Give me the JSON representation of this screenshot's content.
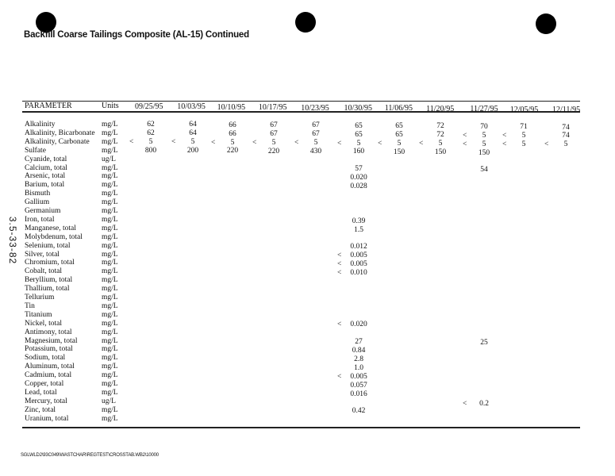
{
  "title": "Backfill Coarse Tailings Composite (AL-15) Continued",
  "side_label": "3.5-33-82",
  "footer": "SGLWLD2\\93C049\\WASTCHAR\\REGTEST\\CROSSTAB.WB2\\10000",
  "table": {
    "param_header": "PARAMETER",
    "units_header": "Units",
    "dates": [
      "09/25/95",
      "10/03/95",
      "10/10/95",
      "10/17/95",
      "10/23/95",
      "10/30/95",
      "11/06/95",
      "11/20/95",
      "11/27/95",
      "12/05/95",
      "12/11/95"
    ],
    "rows": [
      {
        "name": "Alkalinity",
        "units": "mg/L",
        "cells": [
          [
            "",
            "62"
          ],
          [
            "",
            "64"
          ],
          [
            "",
            "66"
          ],
          [
            "",
            "67"
          ],
          [
            "",
            "67"
          ],
          [
            "",
            "65"
          ],
          [
            "",
            "65"
          ],
          [
            "",
            "72"
          ],
          [
            "",
            "70"
          ],
          [
            "",
            "71"
          ],
          [
            "",
            "74"
          ]
        ]
      },
      {
        "name": "Alkalinity, Bicarbonate",
        "units": "mg/L",
        "cells": [
          [
            "",
            "62"
          ],
          [
            "",
            "64"
          ],
          [
            "",
            "66"
          ],
          [
            "",
            "67"
          ],
          [
            "",
            "67"
          ],
          [
            "",
            "65"
          ],
          [
            "",
            "65"
          ],
          [
            "",
            "72"
          ],
          [
            "<",
            "5"
          ],
          [
            "<",
            "5"
          ],
          [
            "",
            "74"
          ]
        ]
      },
      {
        "name": "Alkalinity, Carbonate",
        "units": "mg/L",
        "cells": [
          [
            "<",
            "5"
          ],
          [
            "<",
            "5"
          ],
          [
            "<",
            "5"
          ],
          [
            "<",
            "5"
          ],
          [
            "<",
            "5"
          ],
          [
            "<",
            "5"
          ],
          [
            "<",
            "5"
          ],
          [
            "<",
            "5"
          ],
          [
            "<",
            "5"
          ],
          [
            "<",
            "5"
          ],
          [
            "<",
            "5"
          ]
        ]
      },
      {
        "name": "Sulfate",
        "units": "mg/L",
        "cells": [
          [
            "",
            "800"
          ],
          [
            "",
            "200"
          ],
          [
            "",
            "220"
          ],
          [
            "",
            "220"
          ],
          [
            "",
            "430"
          ],
          [
            "",
            "160"
          ],
          [
            "",
            "150"
          ],
          [
            "",
            "150"
          ],
          [
            "",
            "150"
          ],
          [
            "",
            ""
          ],
          [
            "",
            ""
          ]
        ]
      },
      {
        "name": "Cyanide, total",
        "units": "ug/L",
        "cells": []
      },
      {
        "name": "Calcium, total",
        "units": "mg/L",
        "cells": [
          [
            "",
            ""
          ],
          [
            "",
            ""
          ],
          [
            "",
            ""
          ],
          [
            "",
            ""
          ],
          [
            "",
            ""
          ],
          [
            "",
            "57"
          ],
          [
            "",
            ""
          ],
          [
            "",
            ""
          ],
          [
            "",
            "54"
          ],
          [
            "",
            ""
          ],
          [
            "",
            ""
          ]
        ]
      },
      {
        "name": "Arsenic, total",
        "units": "mg/L",
        "cells": [
          [
            "",
            ""
          ],
          [
            "",
            ""
          ],
          [
            "",
            ""
          ],
          [
            "",
            ""
          ],
          [
            "",
            ""
          ],
          [
            "",
            "0.020"
          ]
        ]
      },
      {
        "name": "Barium, total",
        "units": "mg/L",
        "cells": [
          [
            "",
            ""
          ],
          [
            "",
            ""
          ],
          [
            "",
            ""
          ],
          [
            "",
            ""
          ],
          [
            "",
            ""
          ],
          [
            "",
            "0.028"
          ]
        ]
      },
      {
        "name": "Bismuth",
        "units": "mg/L",
        "cells": []
      },
      {
        "name": "Gallium",
        "units": "mg/L",
        "cells": []
      },
      {
        "name": "Germanium",
        "units": "mg/L",
        "cells": []
      },
      {
        "name": "Iron, total",
        "units": "mg/L",
        "cells": [
          [
            "",
            ""
          ],
          [
            "",
            ""
          ],
          [
            "",
            ""
          ],
          [
            "",
            ""
          ],
          [
            "",
            ""
          ],
          [
            "",
            "0.39"
          ]
        ]
      },
      {
        "name": "Manganese, total",
        "units": "mg/L",
        "cells": [
          [
            "",
            ""
          ],
          [
            "",
            ""
          ],
          [
            "",
            ""
          ],
          [
            "",
            ""
          ],
          [
            "",
            ""
          ],
          [
            "",
            "1.5"
          ]
        ]
      },
      {
        "name": "Molybdenum, total",
        "units": "mg/L",
        "cells": []
      },
      {
        "name": "Selenium, total",
        "units": "mg/L",
        "cells": [
          [
            "",
            ""
          ],
          [
            "",
            ""
          ],
          [
            "",
            ""
          ],
          [
            "",
            ""
          ],
          [
            "",
            ""
          ],
          [
            "",
            "0.012"
          ]
        ]
      },
      {
        "name": "Silver, total",
        "units": "mg/L",
        "cells": [
          [
            "",
            ""
          ],
          [
            "",
            ""
          ],
          [
            "",
            ""
          ],
          [
            "",
            ""
          ],
          [
            "",
            ""
          ],
          [
            "<",
            "0.005"
          ]
        ]
      },
      {
        "name": "Chromium, total",
        "units": "mg/L",
        "cells": [
          [
            "",
            ""
          ],
          [
            "",
            ""
          ],
          [
            "",
            ""
          ],
          [
            "",
            ""
          ],
          [
            "",
            ""
          ],
          [
            "<",
            "0.005"
          ]
        ]
      },
      {
        "name": "Cobalt, total",
        "units": "mg/L",
        "cells": [
          [
            "",
            ""
          ],
          [
            "",
            ""
          ],
          [
            "",
            ""
          ],
          [
            "",
            ""
          ],
          [
            "",
            ""
          ],
          [
            "<",
            "0.010"
          ]
        ]
      },
      {
        "name": "Beryllium, total",
        "units": "mg/L",
        "cells": []
      },
      {
        "name": "Thallium, total",
        "units": "mg/L",
        "cells": []
      },
      {
        "name": "Tellurium",
        "units": "mg/L",
        "cells": []
      },
      {
        "name": "Tin",
        "units": "mg/L",
        "cells": []
      },
      {
        "name": "Titanium",
        "units": "mg/L",
        "cells": []
      },
      {
        "name": "Nickel, total",
        "units": "mg/L",
        "cells": [
          [
            "",
            ""
          ],
          [
            "",
            ""
          ],
          [
            "",
            ""
          ],
          [
            "",
            ""
          ],
          [
            "",
            ""
          ],
          [
            "<",
            "0.020"
          ]
        ]
      },
      {
        "name": "Antimony, total",
        "units": "mg/L",
        "cells": []
      },
      {
        "name": "Magnesium, total",
        "units": "mg/L",
        "cells": [
          [
            "",
            ""
          ],
          [
            "",
            ""
          ],
          [
            "",
            ""
          ],
          [
            "",
            ""
          ],
          [
            "",
            ""
          ],
          [
            "",
            "27"
          ],
          [
            "",
            ""
          ],
          [
            "",
            ""
          ],
          [
            "",
            "25"
          ]
        ]
      },
      {
        "name": "Potassium, total",
        "units": "mg/L",
        "cells": [
          [
            "",
            ""
          ],
          [
            "",
            ""
          ],
          [
            "",
            ""
          ],
          [
            "",
            ""
          ],
          [
            "",
            ""
          ],
          [
            "",
            "0.84"
          ]
        ]
      },
      {
        "name": "Sodium, total",
        "units": "mg/L",
        "cells": [
          [
            "",
            ""
          ],
          [
            "",
            ""
          ],
          [
            "",
            ""
          ],
          [
            "",
            ""
          ],
          [
            "",
            ""
          ],
          [
            "",
            "2.8"
          ]
        ]
      },
      {
        "name": "Aluminum, total",
        "units": "mg/L",
        "cells": [
          [
            "",
            ""
          ],
          [
            "",
            ""
          ],
          [
            "",
            ""
          ],
          [
            "",
            ""
          ],
          [
            "",
            ""
          ],
          [
            "",
            "1.0"
          ]
        ]
      },
      {
        "name": "Cadmium, total",
        "units": "mg/L",
        "cells": [
          [
            "",
            ""
          ],
          [
            "",
            ""
          ],
          [
            "",
            ""
          ],
          [
            "",
            ""
          ],
          [
            "",
            ""
          ],
          [
            "<",
            "0.005"
          ]
        ]
      },
      {
        "name": "Copper, total",
        "units": "mg/L",
        "cells": [
          [
            "",
            ""
          ],
          [
            "",
            ""
          ],
          [
            "",
            ""
          ],
          [
            "",
            ""
          ],
          [
            "",
            ""
          ],
          [
            "",
            "0.057"
          ]
        ]
      },
      {
        "name": "Lead, total",
        "units": "mg/L",
        "cells": [
          [
            "",
            ""
          ],
          [
            "",
            ""
          ],
          [
            "",
            ""
          ],
          [
            "",
            ""
          ],
          [
            "",
            ""
          ],
          [
            "",
            "0.016"
          ]
        ]
      },
      {
        "name": "Mercury, total",
        "units": "ug/L",
        "cells": [
          [
            "",
            ""
          ],
          [
            "",
            ""
          ],
          [
            "",
            ""
          ],
          [
            "",
            ""
          ],
          [
            "",
            ""
          ],
          [
            "",
            ""
          ],
          [
            "",
            ""
          ],
          [
            "",
            ""
          ],
          [
            "<",
            "0.2"
          ]
        ]
      },
      {
        "name": "Zinc, total",
        "units": "mg/L",
        "cells": [
          [
            "",
            ""
          ],
          [
            "",
            ""
          ],
          [
            "",
            ""
          ],
          [
            "",
            ""
          ],
          [
            "",
            ""
          ],
          [
            "",
            "0.42"
          ]
        ]
      },
      {
        "name": "Uranium, total",
        "units": "mg/L",
        "cells": []
      }
    ]
  }
}
